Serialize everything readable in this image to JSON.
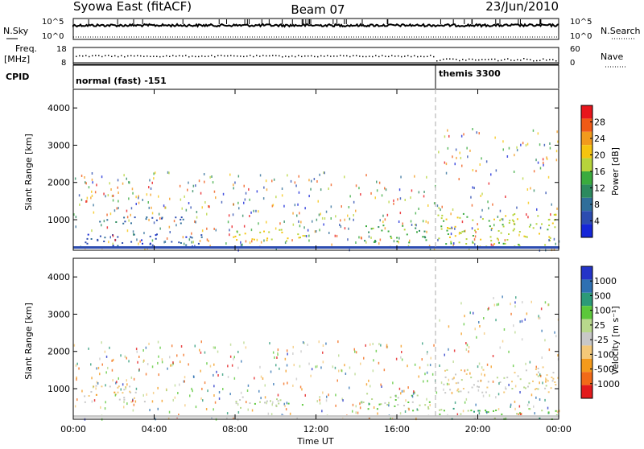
{
  "header": {
    "title": "Syowa East (fitACF)",
    "beam": "Beam 07",
    "date": "23/Jun/2010"
  },
  "top_panel": {
    "nsky_label": "N.Sky",
    "nsearch_label": "N.Search",
    "left_ticks": [
      "10^5",
      "10^0"
    ],
    "right_ticks": [
      "10^5",
      "10^0"
    ],
    "freq_label_1": "Freq.",
    "freq_label_2": "[MHz]",
    "freq_ticks": [
      "18",
      "8"
    ],
    "nave_label": "Nave",
    "nave_ticks": [
      "60",
      "0"
    ],
    "cpid_label": "CPID",
    "mode_1": "normal (fast) -151",
    "mode_2": "themis 3300"
  },
  "axes": {
    "ylabel": "Slant Range [km]",
    "y_ticks": [
      "4000",
      "3000",
      "2000",
      "1000"
    ],
    "x_ticks": [
      "00:00",
      "04:00",
      "08:00",
      "12:00",
      "16:00",
      "20:00",
      "00:00"
    ],
    "xlabel": "Time UT"
  },
  "power_bar": {
    "label": "Power [dB]",
    "ticks": [
      "28",
      "24",
      "20",
      "16",
      "12",
      "8",
      "4"
    ],
    "colors": [
      "#e8161c",
      "#f05a16",
      "#f29a1c",
      "#f6c40f",
      "#b7d43b",
      "#3aab3e",
      "#2c8a5e",
      "#2f6e9a",
      "#2c4cb0",
      "#1526d8"
    ]
  },
  "velocity_bar": {
    "label": "Velocity [m s⁻¹]",
    "ticks": [
      "1000",
      "500",
      "100",
      "25",
      "-25",
      "-100",
      "-500",
      "-1000"
    ],
    "colors": [
      "#2434c8",
      "#2e70b2",
      "#2c9a78",
      "#5cc83a",
      "#b8d88c",
      "#c8c8c8",
      "#f4c878",
      "#f49a1c",
      "#f26a18",
      "#e31a1c"
    ]
  },
  "chart_data": [
    {
      "type": "heatmap",
      "panel": "power",
      "x_range": [
        "00:00",
        "00:00"
      ],
      "ylim": [
        180,
        4500
      ],
      "ylabel": "Slant Range [km]",
      "xlabel": "",
      "colorbar": "Power [dB]",
      "colorbar_range": [
        3,
        30
      ],
      "regions": [
        {
          "t0": 0.2,
          "t1": 5.5,
          "r0": 900,
          "r1": 1100,
          "value": 8
        },
        {
          "t0": 0.5,
          "t1": 6.5,
          "r0": 300,
          "r1": 650,
          "value": 6
        },
        {
          "t0": 7.8,
          "t1": 11.5,
          "r0": 450,
          "r1": 800,
          "value": 20
        },
        {
          "t0": 14.3,
          "t1": 17.6,
          "r0": 400,
          "r1": 900,
          "value": 14
        },
        {
          "t0": 18.0,
          "t1": 24.0,
          "r0": 300,
          "r1": 1200,
          "value": 18
        }
      ]
    },
    {
      "type": "heatmap",
      "panel": "velocity",
      "x_range": [
        "00:00",
        "00:00"
      ],
      "ylim": [
        180,
        4500
      ],
      "ylabel": "Slant Range [km]",
      "xlabel": "Time UT",
      "colorbar": "Velocity [m s⁻¹]",
      "colorbar_range": [
        -1000,
        1000
      ],
      "regions": [
        {
          "t0": 0.5,
          "t1": 3.5,
          "r0": 600,
          "r1": 1100,
          "value": -300
        },
        {
          "t0": 8.0,
          "t1": 11.5,
          "r0": 500,
          "r1": 800,
          "value": 60
        },
        {
          "t0": 14.3,
          "t1": 17.6,
          "r0": 400,
          "r1": 900,
          "value": 150
        },
        {
          "t0": 18.0,
          "t1": 24.0,
          "r0": 200,
          "r1": 500,
          "value": 300
        },
        {
          "t0": 18.0,
          "t1": 24.0,
          "r0": 900,
          "r1": 1600,
          "value": -150
        }
      ]
    }
  ]
}
